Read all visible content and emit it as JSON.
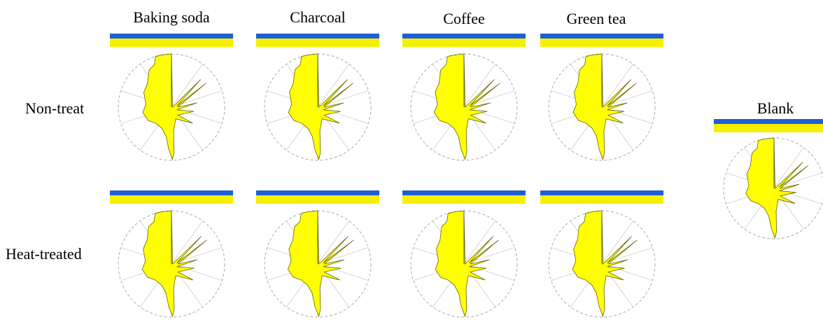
{
  "figure": {
    "column_headers": [
      "Baking soda",
      "Charcoal",
      "Coffee",
      "Green tea"
    ],
    "row_headers": [
      "Non-treat",
      "Heat-treated"
    ],
    "blank_label": "Blank"
  },
  "chart_data": {
    "type": "radar",
    "title": "",
    "grid": true,
    "fill_color": "#ffff00",
    "grid_color": "#aaaaaa",
    "header_colors": {
      "blue": "#1f5fd6",
      "yellow": "#f5f000"
    },
    "panels": [
      {
        "row": "Non-treat",
        "column": "Baking soda"
      },
      {
        "row": "Non-treat",
        "column": "Charcoal"
      },
      {
        "row": "Non-treat",
        "column": "Coffee"
      },
      {
        "row": "Non-treat",
        "column": "Green tea"
      },
      {
        "row": "Heat-treated",
        "column": "Baking soda"
      },
      {
        "row": "Heat-treated",
        "column": "Charcoal"
      },
      {
        "row": "Heat-treated",
        "column": "Coffee"
      },
      {
        "row": "Heat-treated",
        "column": "Green tea"
      },
      {
        "row": "",
        "column": "Blank"
      }
    ]
  }
}
